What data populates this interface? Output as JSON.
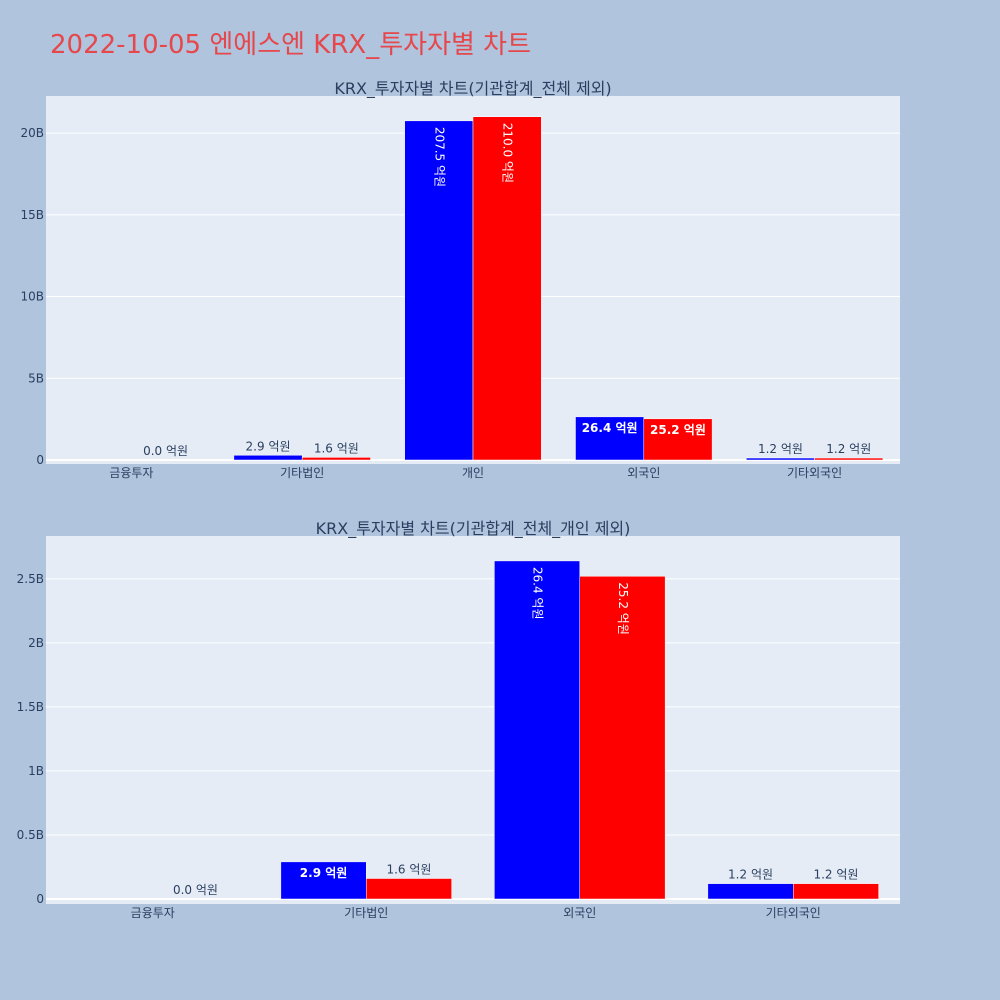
{
  "title": "2022-10-05 엔에스엔 KRX_투자자별 차트",
  "colors": {
    "buy": "#0000ff",
    "sell": "#ff0000"
  },
  "chart_data": [
    {
      "type": "bar",
      "title": "KRX_투자자별 차트(기관합계_전체 제외)",
      "categories": [
        "금융투자",
        "기타법인",
        "개인",
        "외국인",
        "기타외국인"
      ],
      "series": [
        {
          "values": [
            0,
            290000000,
            20750000000,
            2640000000,
            120000000
          ],
          "labels": [
            "",
            "2.9 억원",
            "207.5 억원",
            "26.4 억원",
            "1.2 억원"
          ]
        },
        {
          "values": [
            0,
            160000000,
            21000000000,
            2520000000,
            120000000
          ],
          "labels": [
            "0.0 억원",
            "1.6 억원",
            "210.0 억원",
            "25.2 억원",
            "1.2 억원"
          ]
        }
      ],
      "yticks": [
        "0",
        "5B",
        "10B",
        "15B",
        "20B"
      ],
      "ylim": [
        0,
        22000000000
      ],
      "grid": true
    },
    {
      "type": "bar",
      "title": "KRX_투자자별 차트(기관합계_전체_개인 제외)",
      "categories": [
        "금융투자",
        "기타법인",
        "외국인",
        "기타외국인"
      ],
      "series": [
        {
          "values": [
            0,
            290000000,
            2640000000,
            120000000
          ],
          "labels": [
            "",
            "2.9 억원",
            "26.4 억원",
            "1.2 억원"
          ]
        },
        {
          "values": [
            0,
            160000000,
            2520000000,
            120000000
          ],
          "labels": [
            "0.0 억원",
            "1.6 억원",
            "25.2 억원",
            "1.2 억원"
          ]
        }
      ],
      "yticks": [
        "0",
        "0.5B",
        "1B",
        "1.5B",
        "2B",
        "2.5B"
      ],
      "ylim": [
        0,
        2800000000
      ],
      "grid": true
    }
  ]
}
